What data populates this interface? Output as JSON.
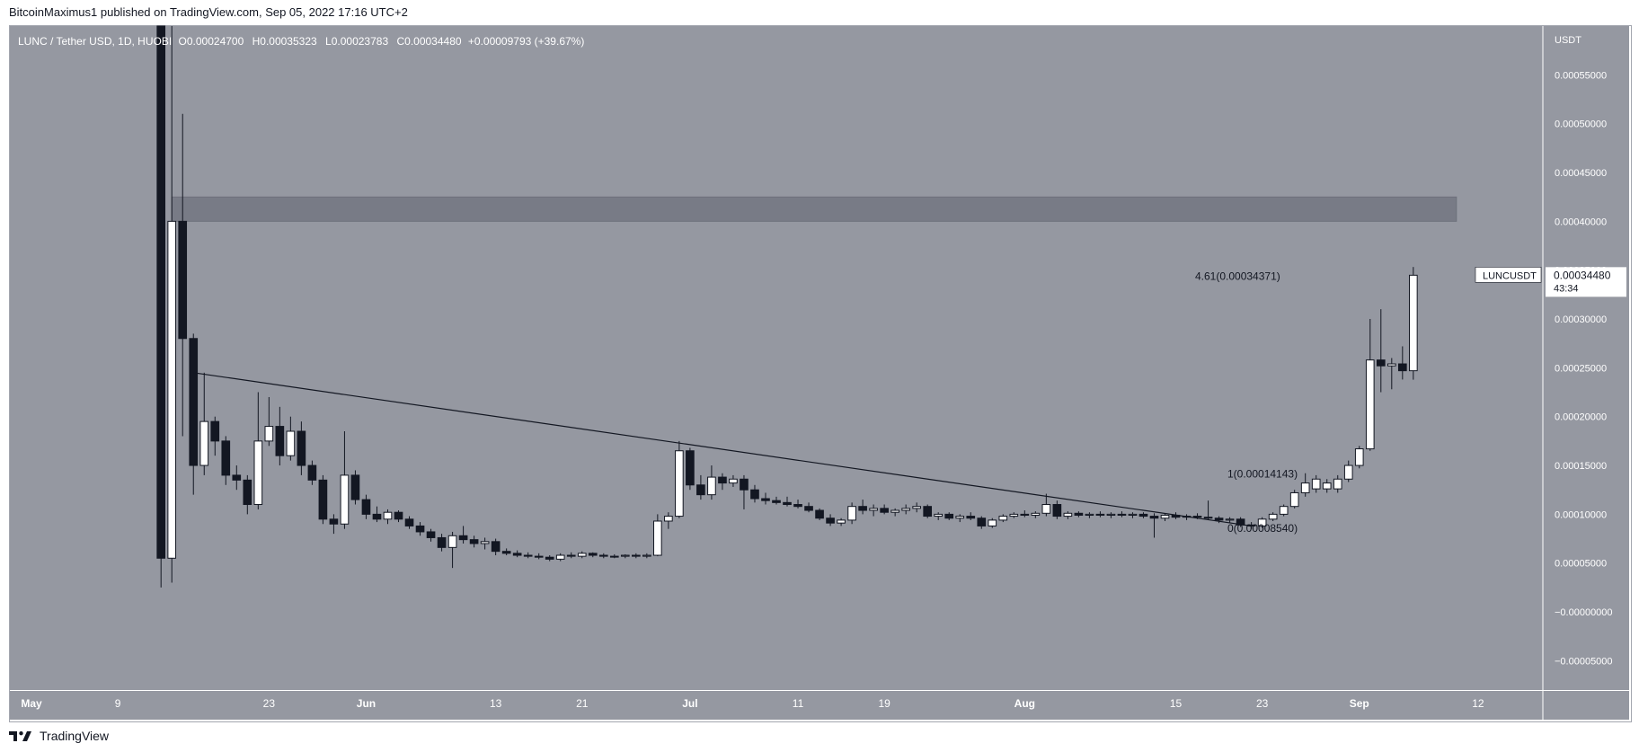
{
  "header": {
    "published_text": "BitcoinMaximus1 published on TradingView.com, Sep 05, 2022 17:16 UTC+2"
  },
  "legend": {
    "symbol": "LUNC / Tether USD, 1D, HUOBI",
    "o_label": "O",
    "o_value": "0.00024700",
    "h_label": "H",
    "h_value": "0.00035323",
    "l_label": "L",
    "l_value": "0.00023783",
    "c_label": "C",
    "c_value": "0.00034480",
    "change": "+0.00009793 (+39.67%)"
  },
  "price_axis": {
    "currency": "USDT",
    "tick_labels": [
      "0.00055000",
      "0.00050000",
      "0.00045000",
      "0.00040000",
      "0.00035000",
      "0.00030000",
      "0.00025000",
      "0.00020000",
      "0.00015000",
      "0.00010000",
      "0.00005000",
      "−0.00000000",
      "−0.00005000"
    ]
  },
  "time_axis": {
    "tick_labels": [
      "May",
      "9",
      "23",
      "Jun",
      "13",
      "21",
      "Jul",
      "11",
      "19",
      "Aug",
      "15",
      "23",
      "Sep",
      "12"
    ]
  },
  "price_tag": {
    "ticker": "LUNCUSDT",
    "value": "0.00034480",
    "countdown": "43:34"
  },
  "fib_labels": {
    "top": "4.61(0.00034371)",
    "mid": "1(0.00014143)",
    "bottom": "0(0.00008540)"
  },
  "footer": {
    "brand": "TradingView"
  },
  "colors": {
    "background": "#9598a1",
    "panel": "#ffffff",
    "up_candle": "#ffffff",
    "down_candle": "#131722",
    "wick": "#131722",
    "zone": "#787b86",
    "text_on_chart": "#ffffff",
    "axis_text": "#ffffff"
  },
  "chart_data": {
    "type": "candlestick",
    "title": "LUNC / Tether USD, 1D, HUOBI",
    "ylim": [
      -8e-05,
      0.0006
    ],
    "y_ticks": [
      0.00055,
      0.0005,
      0.00045,
      0.0004,
      0.00035,
      0.0003,
      0.00025,
      0.0002,
      0.00015,
      0.0001,
      5e-05,
      0,
      -5e-05
    ],
    "x_range": [
      "2022-04-29",
      "2022-09-18"
    ],
    "x_ticks": [
      {
        "date": "2022-05-01",
        "label": "May"
      },
      {
        "date": "2022-05-09",
        "label": "9"
      },
      {
        "date": "2022-05-23",
        "label": "23"
      },
      {
        "date": "2022-06-01",
        "label": "Jun"
      },
      {
        "date": "2022-06-13",
        "label": "13"
      },
      {
        "date": "2022-06-21",
        "label": "21"
      },
      {
        "date": "2022-07-01",
        "label": "Jul"
      },
      {
        "date": "2022-07-11",
        "label": "11"
      },
      {
        "date": "2022-07-19",
        "label": "19"
      },
      {
        "date": "2022-08-01",
        "label": "Aug"
      },
      {
        "date": "2022-08-15",
        "label": "15"
      },
      {
        "date": "2022-08-23",
        "label": "23"
      },
      {
        "date": "2022-09-01",
        "label": "Sep"
      },
      {
        "date": "2022-09-12",
        "label": "12"
      }
    ],
    "candles": [
      {
        "d": "2022-05-13",
        "o": 0.0007,
        "h": 0.00072,
        "l": 2.5e-05,
        "c": 5.5e-05
      },
      {
        "d": "2022-05-14",
        "o": 5.5e-05,
        "h": 0.00065,
        "l": 3e-05,
        "c": 0.0004
      },
      {
        "d": "2022-05-15",
        "o": 0.0004,
        "h": 0.00051,
        "l": 0.00018,
        "c": 0.00028
      },
      {
        "d": "2022-05-16",
        "o": 0.00028,
        "h": 0.000285,
        "l": 0.00012,
        "c": 0.00015
      },
      {
        "d": "2022-05-17",
        "o": 0.00015,
        "h": 0.000245,
        "l": 0.00014,
        "c": 0.000195
      },
      {
        "d": "2022-05-18",
        "o": 0.000195,
        "h": 0.0002,
        "l": 0.00016,
        "c": 0.000175
      },
      {
        "d": "2022-05-19",
        "o": 0.000175,
        "h": 0.00018,
        "l": 0.00013,
        "c": 0.00014
      },
      {
        "d": "2022-05-20",
        "o": 0.00014,
        "h": 0.00015,
        "l": 0.000125,
        "c": 0.000135
      },
      {
        "d": "2022-05-21",
        "o": 0.000135,
        "h": 0.00014,
        "l": 0.0001,
        "c": 0.00011
      },
      {
        "d": "2022-05-22",
        "o": 0.00011,
        "h": 0.000225,
        "l": 0.000105,
        "c": 0.000175
      },
      {
        "d": "2022-05-23",
        "o": 0.000175,
        "h": 0.00022,
        "l": 0.00017,
        "c": 0.00019
      },
      {
        "d": "2022-05-24",
        "o": 0.00019,
        "h": 0.00021,
        "l": 0.00015,
        "c": 0.00016
      },
      {
        "d": "2022-05-25",
        "o": 0.00016,
        "h": 0.0002,
        "l": 0.000155,
        "c": 0.000185
      },
      {
        "d": "2022-05-26",
        "o": 0.000185,
        "h": 0.000195,
        "l": 0.00014,
        "c": 0.00015
      },
      {
        "d": "2022-05-27",
        "o": 0.00015,
        "h": 0.000155,
        "l": 0.00013,
        "c": 0.000135
      },
      {
        "d": "2022-05-28",
        "o": 0.000135,
        "h": 0.00014,
        "l": 9e-05,
        "c": 9.5e-05
      },
      {
        "d": "2022-05-29",
        "o": 9.5e-05,
        "h": 0.0001,
        "l": 8e-05,
        "c": 9e-05
      },
      {
        "d": "2022-05-30",
        "o": 9e-05,
        "h": 0.000185,
        "l": 8.5e-05,
        "c": 0.00014
      },
      {
        "d": "2022-05-31",
        "o": 0.00014,
        "h": 0.000145,
        "l": 0.00011,
        "c": 0.000115
      },
      {
        "d": "2022-06-01",
        "o": 0.000115,
        "h": 0.00012,
        "l": 9.5e-05,
        "c": 0.0001
      },
      {
        "d": "2022-06-02",
        "o": 0.0001,
        "h": 0.000108,
        "l": 9.2e-05,
        "c": 9.5e-05
      },
      {
        "d": "2022-06-03",
        "o": 9.5e-05,
        "h": 0.000105,
        "l": 9e-05,
        "c": 0.000102
      },
      {
        "d": "2022-06-04",
        "o": 0.000102,
        "h": 0.000104,
        "l": 9.2e-05,
        "c": 9.5e-05
      },
      {
        "d": "2022-06-05",
        "o": 9.5e-05,
        "h": 9.8e-05,
        "l": 8.5e-05,
        "c": 8.8e-05
      },
      {
        "d": "2022-06-06",
        "o": 8.8e-05,
        "h": 9.2e-05,
        "l": 7.8e-05,
        "c": 8.2e-05
      },
      {
        "d": "2022-06-07",
        "o": 8.2e-05,
        "h": 8.5e-05,
        "l": 7.2e-05,
        "c": 7.6e-05
      },
      {
        "d": "2022-06-08",
        "o": 7.6e-05,
        "h": 8e-05,
        "l": 6.2e-05,
        "c": 6.6e-05
      },
      {
        "d": "2022-06-09",
        "o": 6.6e-05,
        "h": 8.2e-05,
        "l": 4.5e-05,
        "c": 7.8e-05
      },
      {
        "d": "2022-06-10",
        "o": 7.8e-05,
        "h": 8.8e-05,
        "l": 7e-05,
        "c": 7.4e-05
      },
      {
        "d": "2022-06-11",
        "o": 7.4e-05,
        "h": 7.8e-05,
        "l": 6.6e-05,
        "c": 7e-05
      },
      {
        "d": "2022-06-12",
        "o": 7e-05,
        "h": 7.6e-05,
        "l": 6.4e-05,
        "c": 7.2e-05
      },
      {
        "d": "2022-06-13",
        "o": 7.2e-05,
        "h": 7.5e-05,
        "l": 5.8e-05,
        "c": 6.2e-05
      },
      {
        "d": "2022-06-14",
        "o": 6.2e-05,
        "h": 6.5e-05,
        "l": 5.8e-05,
        "c": 6e-05
      },
      {
        "d": "2022-06-15",
        "o": 6e-05,
        "h": 6.3e-05,
        "l": 5.6e-05,
        "c": 5.8e-05
      },
      {
        "d": "2022-06-16",
        "o": 5.8e-05,
        "h": 6.1e-05,
        "l": 5.5e-05,
        "c": 5.7e-05
      },
      {
        "d": "2022-06-17",
        "o": 5.7e-05,
        "h": 6e-05,
        "l": 5.4e-05,
        "c": 5.6e-05
      },
      {
        "d": "2022-06-18",
        "o": 5.6e-05,
        "h": 5.8e-05,
        "l": 5.2e-05,
        "c": 5.4e-05
      },
      {
        "d": "2022-06-19",
        "o": 5.4e-05,
        "h": 6e-05,
        "l": 5.2e-05,
        "c": 5.8e-05
      },
      {
        "d": "2022-06-20",
        "o": 5.8e-05,
        "h": 6.1e-05,
        "l": 5.5e-05,
        "c": 5.7e-05
      },
      {
        "d": "2022-06-21",
        "o": 5.7e-05,
        "h": 6.2e-05,
        "l": 5.5e-05,
        "c": 6e-05
      },
      {
        "d": "2022-06-22",
        "o": 6e-05,
        "h": 6.1e-05,
        "l": 5.6e-05,
        "c": 5.8e-05
      },
      {
        "d": "2022-06-23",
        "o": 5.8e-05,
        "h": 6e-05,
        "l": 5.5e-05,
        "c": 5.7e-05
      },
      {
        "d": "2022-06-24",
        "o": 5.7e-05,
        "h": 5.9e-05,
        "l": 5.5e-05,
        "c": 5.7e-05
      },
      {
        "d": "2022-06-25",
        "o": 5.7e-05,
        "h": 5.9e-05,
        "l": 5.5e-05,
        "c": 5.8e-05
      },
      {
        "d": "2022-06-26",
        "o": 5.8e-05,
        "h": 6e-05,
        "l": 5.5e-05,
        "c": 5.7e-05
      },
      {
        "d": "2022-06-27",
        "o": 5.7e-05,
        "h": 6e-05,
        "l": 5.5e-05,
        "c": 5.8e-05
      },
      {
        "d": "2022-06-28",
        "o": 5.8e-05,
        "h": 0.0001,
        "l": 5.7e-05,
        "c": 9.3e-05
      },
      {
        "d": "2022-06-29",
        "o": 9.3e-05,
        "h": 0.000102,
        "l": 8.5e-05,
        "c": 9.8e-05
      },
      {
        "d": "2022-06-30",
        "o": 9.8e-05,
        "h": 0.000175,
        "l": 9.6e-05,
        "c": 0.000165
      },
      {
        "d": "2022-07-01",
        "o": 0.000165,
        "h": 0.000168,
        "l": 0.000125,
        "c": 0.00013
      },
      {
        "d": "2022-07-02",
        "o": 0.00013,
        "h": 0.00014,
        "l": 0.000115,
        "c": 0.00012
      },
      {
        "d": "2022-07-03",
        "o": 0.00012,
        "h": 0.00015,
        "l": 0.000115,
        "c": 0.000138
      },
      {
        "d": "2022-07-04",
        "o": 0.000138,
        "h": 0.000142,
        "l": 0.000125,
        "c": 0.000132
      },
      {
        "d": "2022-07-05",
        "o": 0.000132,
        "h": 0.00014,
        "l": 0.000128,
        "c": 0.000136
      },
      {
        "d": "2022-07-06",
        "o": 0.000136,
        "h": 0.00014,
        "l": 0.000105,
        "c": 0.000125
      },
      {
        "d": "2022-07-07",
        "o": 0.000125,
        "h": 0.00013,
        "l": 0.000112,
        "c": 0.000116
      },
      {
        "d": "2022-07-08",
        "o": 0.000116,
        "h": 0.000122,
        "l": 0.00011,
        "c": 0.000114
      },
      {
        "d": "2022-07-09",
        "o": 0.000114,
        "h": 0.000118,
        "l": 0.00011,
        "c": 0.000112
      },
      {
        "d": "2022-07-10",
        "o": 0.000112,
        "h": 0.000118,
        "l": 0.000108,
        "c": 0.00011
      },
      {
        "d": "2022-07-11",
        "o": 0.00011,
        "h": 0.000115,
        "l": 0.000106,
        "c": 0.000108
      },
      {
        "d": "2022-07-12",
        "o": 0.000108,
        "h": 0.000112,
        "l": 0.000102,
        "c": 0.000104
      },
      {
        "d": "2022-07-13",
        "o": 0.000104,
        "h": 0.000106,
        "l": 9.4e-05,
        "c": 9.6e-05
      },
      {
        "d": "2022-07-14",
        "o": 9.6e-05,
        "h": 0.0001,
        "l": 8.8e-05,
        "c": 9.1e-05
      },
      {
        "d": "2022-07-15",
        "o": 9.1e-05,
        "h": 9.6e-05,
        "l": 8.8e-05,
        "c": 9.4e-05
      },
      {
        "d": "2022-07-16",
        "o": 9.4e-05,
        "h": 0.000112,
        "l": 9e-05,
        "c": 0.000108
      },
      {
        "d": "2022-07-17",
        "o": 0.000108,
        "h": 0.000115,
        "l": 0.0001,
        "c": 0.000104
      },
      {
        "d": "2022-07-18",
        "o": 0.000104,
        "h": 0.00011,
        "l": 9.8e-05,
        "c": 0.000106
      },
      {
        "d": "2022-07-19",
        "o": 0.000106,
        "h": 0.00011,
        "l": 0.0001,
        "c": 0.000102
      },
      {
        "d": "2022-07-20",
        "o": 0.000102,
        "h": 0.000106,
        "l": 9.8e-05,
        "c": 0.000104
      },
      {
        "d": "2022-07-21",
        "o": 0.000104,
        "h": 0.00011,
        "l": 0.0001,
        "c": 0.000106
      },
      {
        "d": "2022-07-22",
        "o": 0.000106,
        "h": 0.000112,
        "l": 0.000102,
        "c": 0.000108
      },
      {
        "d": "2022-07-23",
        "o": 0.000108,
        "h": 0.00011,
        "l": 9.6e-05,
        "c": 9.8e-05
      },
      {
        "d": "2022-07-24",
        "o": 9.8e-05,
        "h": 0.000102,
        "l": 9.4e-05,
        "c": 0.0001
      },
      {
        "d": "2022-07-25",
        "o": 0.0001,
        "h": 0.000102,
        "l": 9.4e-05,
        "c": 9.6e-05
      },
      {
        "d": "2022-07-26",
        "o": 9.6e-05,
        "h": 0.0001,
        "l": 9.2e-05,
        "c": 9.8e-05
      },
      {
        "d": "2022-07-27",
        "o": 9.8e-05,
        "h": 0.000102,
        "l": 9.4e-05,
        "c": 9.6e-05
      },
      {
        "d": "2022-07-28",
        "o": 9.6e-05,
        "h": 9.8e-05,
        "l": 8.5e-05,
        "c": 8.8e-05
      },
      {
        "d": "2022-07-29",
        "o": 8.8e-05,
        "h": 9.6e-05,
        "l": 8.6e-05,
        "c": 9.4e-05
      },
      {
        "d": "2022-07-30",
        "o": 9.4e-05,
        "h": 0.0001,
        "l": 9.2e-05,
        "c": 9.8e-05
      },
      {
        "d": "2022-07-31",
        "o": 9.8e-05,
        "h": 0.000102,
        "l": 9.6e-05,
        "c": 0.0001
      },
      {
        "d": "2022-08-01",
        "o": 0.0001,
        "h": 0.000104,
        "l": 9.7e-05,
        "c": 9.9e-05
      },
      {
        "d": "2022-08-02",
        "o": 9.9e-05,
        "h": 0.000103,
        "l": 9.6e-05,
        "c": 0.000101
      },
      {
        "d": "2022-08-03",
        "o": 0.000101,
        "h": 0.000121,
        "l": 9.8e-05,
        "c": 0.00011
      },
      {
        "d": "2022-08-04",
        "o": 0.00011,
        "h": 0.000114,
        "l": 9.5e-05,
        "c": 9.8e-05
      },
      {
        "d": "2022-08-05",
        "o": 9.8e-05,
        "h": 0.000103,
        "l": 9.5e-05,
        "c": 0.000101
      },
      {
        "d": "2022-08-06",
        "o": 0.000101,
        "h": 0.000103,
        "l": 9.7e-05,
        "c": 9.9e-05
      },
      {
        "d": "2022-08-07",
        "o": 9.9e-05,
        "h": 0.000102,
        "l": 9.6e-05,
        "c": 0.0001
      },
      {
        "d": "2022-08-08",
        "o": 0.0001,
        "h": 0.000103,
        "l": 9.7e-05,
        "c": 9.9e-05
      },
      {
        "d": "2022-08-09",
        "o": 9.9e-05,
        "h": 0.000102,
        "l": 9.6e-05,
        "c": 0.0001
      },
      {
        "d": "2022-08-10",
        "o": 0.0001,
        "h": 0.000103,
        "l": 9.7e-05,
        "c": 9.9e-05
      },
      {
        "d": "2022-08-11",
        "o": 9.9e-05,
        "h": 0.000102,
        "l": 9.6e-05,
        "c": 0.0001
      },
      {
        "d": "2022-08-12",
        "o": 0.0001,
        "h": 0.000102,
        "l": 9.6e-05,
        "c": 9.8e-05
      },
      {
        "d": "2022-08-13",
        "o": 9.8e-05,
        "h": 0.000101,
        "l": 7.6e-05,
        "c": 9.6e-05
      },
      {
        "d": "2022-08-14",
        "o": 9.6e-05,
        "h": 0.000101,
        "l": 9.3e-05,
        "c": 9.9e-05
      },
      {
        "d": "2022-08-15",
        "o": 9.9e-05,
        "h": 0.000102,
        "l": 9.5e-05,
        "c": 9.7e-05
      },
      {
        "d": "2022-08-16",
        "o": 9.7e-05,
        "h": 0.0001,
        "l": 9.4e-05,
        "c": 9.8e-05
      },
      {
        "d": "2022-08-17",
        "o": 9.8e-05,
        "h": 0.000101,
        "l": 9.5e-05,
        "c": 9.7e-05
      },
      {
        "d": "2022-08-18",
        "o": 9.7e-05,
        "h": 0.000114,
        "l": 9.4e-05,
        "c": 9.6e-05
      },
      {
        "d": "2022-08-19",
        "o": 9.6e-05,
        "h": 9.8e-05,
        "l": 9.1e-05,
        "c": 9.4e-05
      },
      {
        "d": "2022-08-20",
        "o": 9.4e-05,
        "h": 9.7e-05,
        "l": 9.1e-05,
        "c": 9.5e-05
      },
      {
        "d": "2022-08-21",
        "o": 9.5e-05,
        "h": 9.7e-05,
        "l": 8.7e-05,
        "c": 8.9e-05
      },
      {
        "d": "2022-08-22",
        "o": 8.9e-05,
        "h": 9.2e-05,
        "l": 8.5e-05,
        "c": 8.8e-05
      },
      {
        "d": "2022-08-23",
        "o": 8.8e-05,
        "h": 9.7e-05,
        "l": 8.6e-05,
        "c": 9.5e-05
      },
      {
        "d": "2022-08-24",
        "o": 9.5e-05,
        "h": 0.000102,
        "l": 9.3e-05,
        "c": 0.0001
      },
      {
        "d": "2022-08-25",
        "o": 0.0001,
        "h": 0.00011,
        "l": 9.8e-05,
        "c": 0.000108
      },
      {
        "d": "2022-08-26",
        "o": 0.000108,
        "h": 0.000125,
        "l": 0.000106,
        "c": 0.000122
      },
      {
        "d": "2022-08-27",
        "o": 0.000122,
        "h": 0.000142,
        "l": 0.000118,
        "c": 0.000132
      },
      {
        "d": "2022-08-28",
        "o": 0.000126,
        "h": 0.00014,
        "l": 0.000122,
        "c": 0.000136
      },
      {
        "d": "2022-08-29",
        "o": 0.000126,
        "h": 0.000136,
        "l": 0.000122,
        "c": 0.000132
      },
      {
        "d": "2022-08-30",
        "o": 0.000126,
        "h": 0.00014,
        "l": 0.000122,
        "c": 0.000136
      },
      {
        "d": "2022-08-31",
        "o": 0.000136,
        "h": 0.000155,
        "l": 0.000133,
        "c": 0.00015
      },
      {
        "d": "2022-09-01",
        "o": 0.00015,
        "h": 0.00017,
        "l": 0.000147,
        "c": 0.000167
      },
      {
        "d": "2022-09-02",
        "o": 0.000167,
        "h": 0.0003,
        "l": 0.000165,
        "c": 0.000258
      },
      {
        "d": "2022-09-03",
        "o": 0.000258,
        "h": 0.00031,
        "l": 0.000225,
        "c": 0.000252
      },
      {
        "d": "2022-09-04",
        "o": 0.000252,
        "h": 0.00026,
        "l": 0.000228,
        "c": 0.000254
      },
      {
        "d": "2022-09-05",
        "o": 0.000254,
        "h": 0.000272,
        "l": 0.000238,
        "c": 0.000247
      },
      {
        "d": "2022-09-06",
        "o": 0.000247,
        "h": 0.00035323,
        "l": 0.00023783,
        "c": 0.0003448
      }
    ],
    "resistance_zone": {
      "from": "2022-05-14",
      "to": "2022-09-10",
      "y_low": 0.0004,
      "y_high": 0.000425
    },
    "trendline": {
      "x1": "2022-05-16",
      "y1": 0.000245,
      "x2": "2022-08-22",
      "y2": 8.8e-05
    },
    "fib_levels": [
      {
        "label": "4.61(0.00034371)",
        "value": 0.00034371
      },
      {
        "label": "1(0.00014143)",
        "value": 0.00014143
      },
      {
        "label": "0(0.00008540)",
        "value": 8.54e-05
      }
    ],
    "last_price": 0.0003448
  }
}
